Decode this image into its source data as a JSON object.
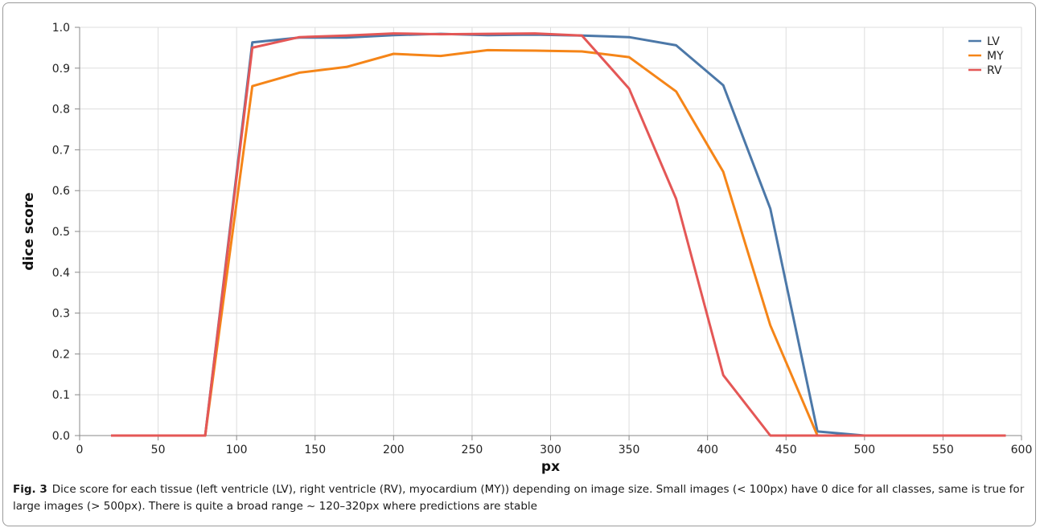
{
  "chart_data": {
    "type": "line",
    "xlabel": "px",
    "ylabel": "dice score",
    "xlim": [
      0,
      600
    ],
    "ylim": [
      0,
      1.0
    ],
    "xticks": [
      "0",
      "50",
      "100",
      "150",
      "200",
      "250",
      "300",
      "350",
      "400",
      "450",
      "500",
      "550",
      "600"
    ],
    "yticks": [
      "0.0",
      "0.1",
      "0.2",
      "0.3",
      "0.4",
      "0.5",
      "0.6",
      "0.7",
      "0.8",
      "0.9",
      "1.0"
    ],
    "grid": true,
    "legend_position": "top-right",
    "x": [
      20,
      50,
      80,
      110,
      140,
      170,
      200,
      230,
      260,
      290,
      320,
      350,
      380,
      410,
      440,
      470,
      500,
      530,
      560,
      590
    ],
    "series": [
      {
        "name": "LV",
        "color": "#4c78a8",
        "values": [
          0,
          0,
          0,
          0.963,
          0.975,
          0.975,
          0.981,
          0.984,
          0.981,
          0.982,
          0.98,
          0.976,
          0.956,
          0.858,
          0.556,
          0.01,
          0,
          0,
          0,
          0
        ]
      },
      {
        "name": "MY",
        "color": "#f58518",
        "values": [
          0,
          0,
          0,
          0.856,
          0.889,
          0.903,
          0.935,
          0.93,
          0.944,
          0.943,
          0.941,
          0.927,
          0.843,
          0.646,
          0.27,
          0,
          0,
          0,
          0,
          0
        ]
      },
      {
        "name": "RV",
        "color": "#e45756",
        "values": [
          0,
          0,
          0,
          0.95,
          0.976,
          0.98,
          0.985,
          0.983,
          0.984,
          0.985,
          0.98,
          0.85,
          0.58,
          0.148,
          0,
          0,
          0,
          0,
          0,
          0
        ]
      }
    ]
  },
  "caption": {
    "label": "Fig. 3",
    "text": "Dice score for each tissue (left ventricle (LV), right ventricle (RV), myocardium (MY)) depending on image size. Small images (< 100px) have 0 dice for all classes, same is true for large images (> 500px). There is quite a broad range ~ 120–320px where predictions are stable"
  }
}
